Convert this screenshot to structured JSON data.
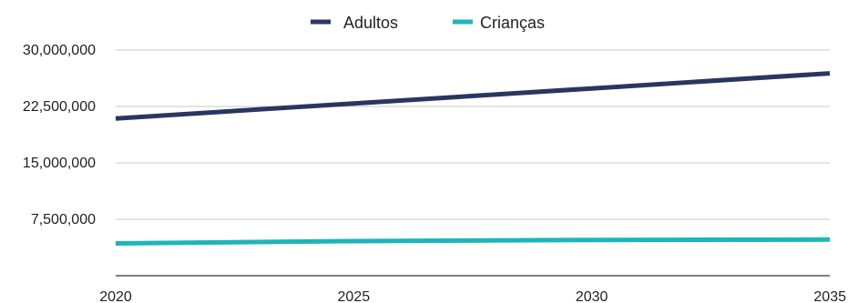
{
  "chart_data": {
    "type": "line",
    "title": "",
    "xlabel": "",
    "ylabel": "",
    "x": [
      2020,
      2025,
      2030,
      2035
    ],
    "x_tick_labels": [
      "2020",
      "2025",
      "2030",
      "2035"
    ],
    "xlim": [
      2020,
      2035
    ],
    "y_ticks": [
      7500000,
      15000000,
      22500000,
      30000000
    ],
    "y_tick_labels": [
      "7,500,000",
      "15,000,000",
      "22,500,000",
      "30,000,000"
    ],
    "ylim": [
      0,
      30000000
    ],
    "grid": "horizontal",
    "legend_position": "top-center",
    "series": [
      {
        "name": "Adultos",
        "color": "#2b3561",
        "values": [
          20900000,
          22900000,
          24900000,
          26900000
        ]
      },
      {
        "name": "Crianças",
        "color": "#1fb5b8",
        "values": [
          4300000,
          4600000,
          4750000,
          4800000
        ]
      }
    ]
  }
}
